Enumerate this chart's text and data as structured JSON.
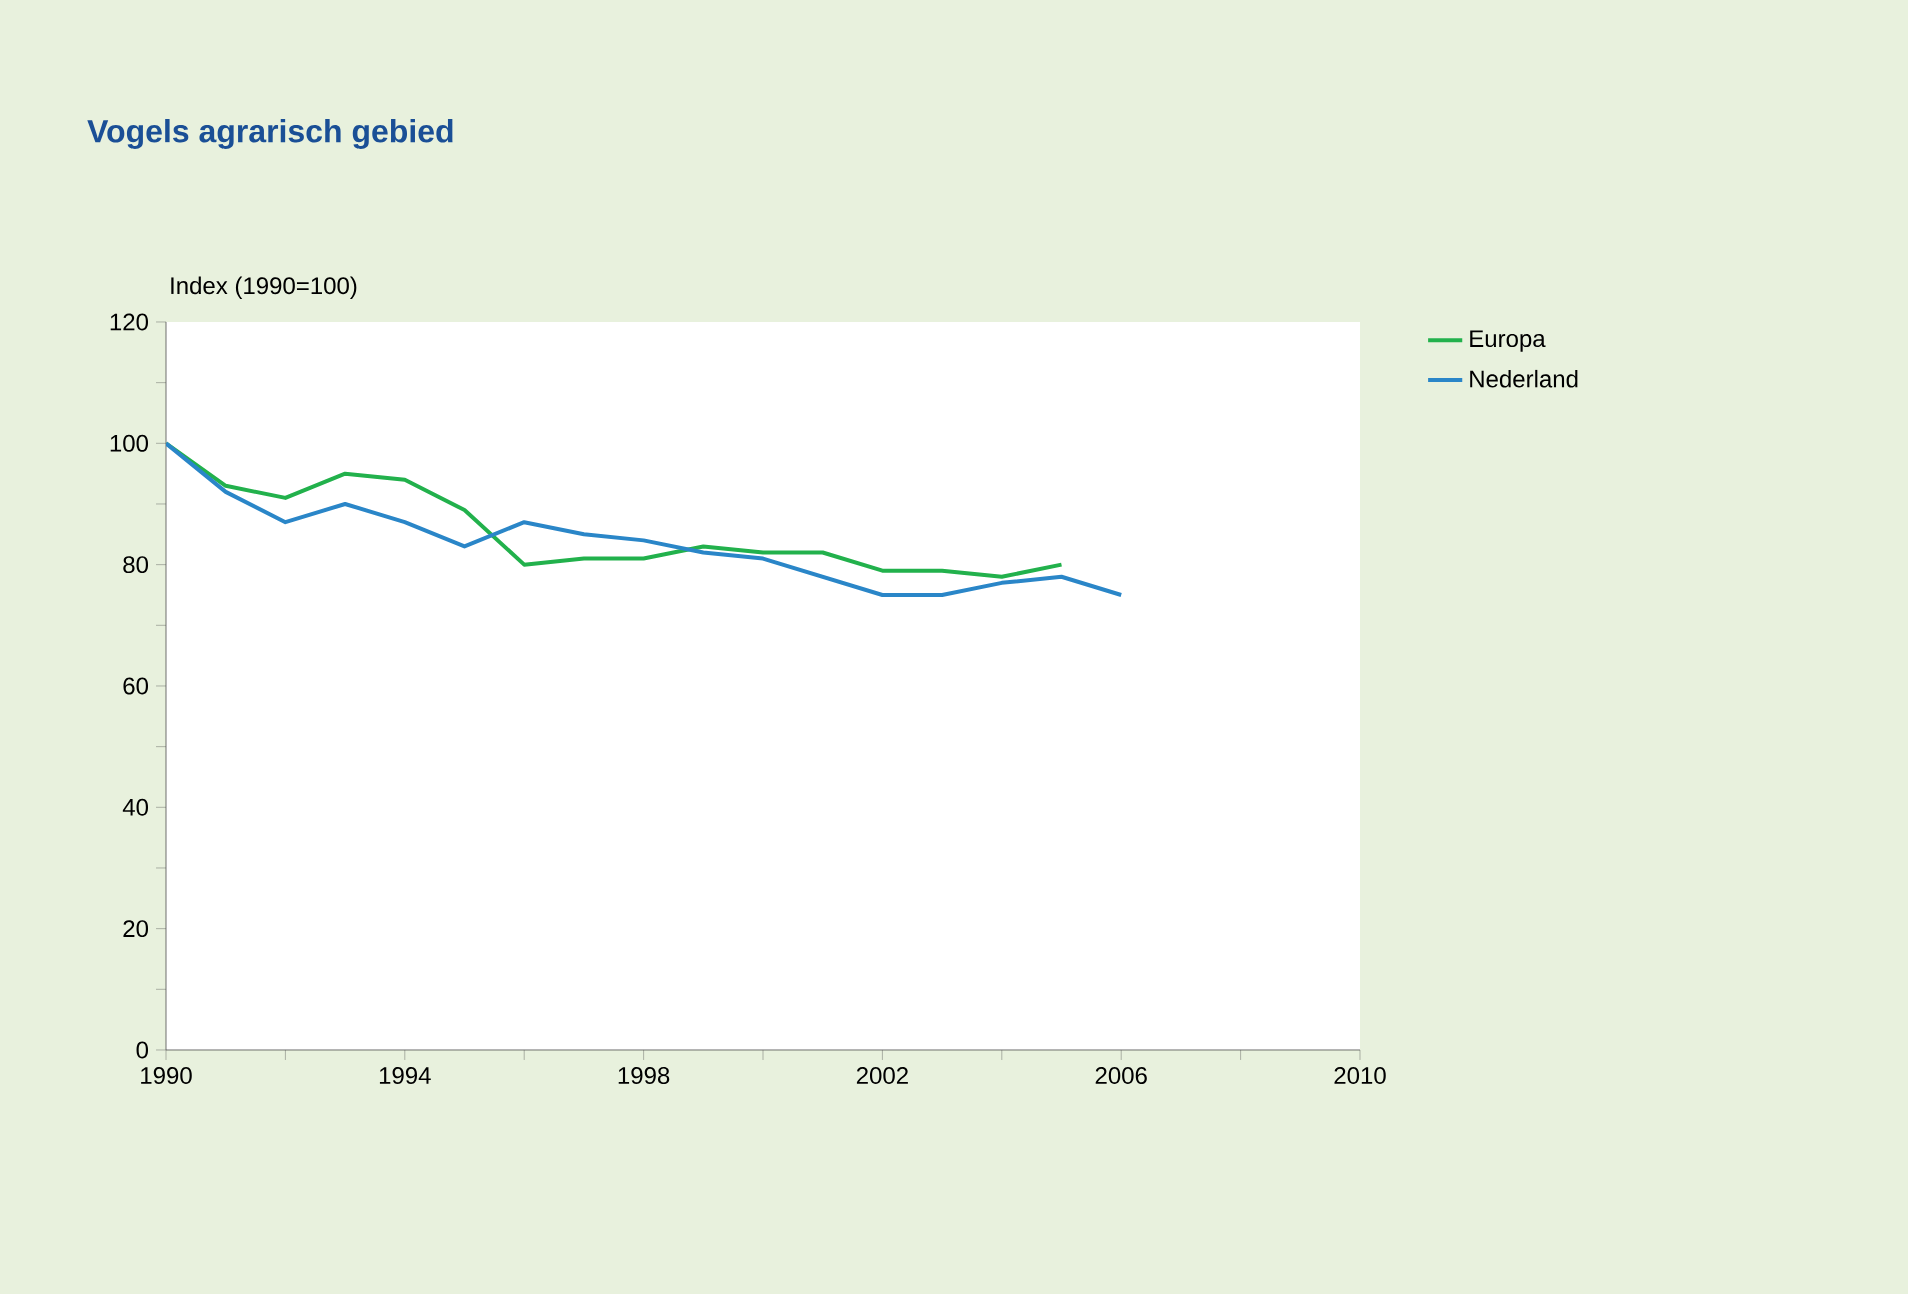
{
  "chart_data": {
    "type": "line",
    "title": "Vogels agrarisch gebied",
    "ylabel": "Index (1990=100)",
    "x": [
      1990,
      1991,
      1992,
      1993,
      1994,
      1995,
      1996,
      1997,
      1998,
      1999,
      2000,
      2001,
      2002,
      2003,
      2004,
      2005,
      2006
    ],
    "series": [
      {
        "name": "Europa",
        "color": "#22b14c",
        "values": [
          100,
          93,
          91,
          95,
          94,
          89,
          80,
          81,
          81,
          83,
          82,
          82,
          79,
          79,
          78,
          80,
          null
        ]
      },
      {
        "name": "Nederland",
        "color": "#2a86c8",
        "values": [
          100,
          92,
          87,
          90,
          87,
          83,
          87,
          85,
          84,
          82,
          81,
          78,
          75,
          75,
          77,
          78,
          75
        ]
      }
    ],
    "xlim": [
      1990,
      2010
    ],
    "xticks": [
      1990,
      {
        "value": 1992,
        "label": null
      },
      1994,
      {
        "value": 1996,
        "label": null
      },
      1998,
      {
        "value": 2000,
        "label": null
      },
      2002,
      {
        "value": 2004,
        "label": null
      },
      2006,
      {
        "value": 2008,
        "label": null
      },
      2010
    ],
    "ylim": [
      0,
      120
    ],
    "yticks": [
      0,
      {
        "value": 10,
        "label": null
      },
      20,
      {
        "value": 30,
        "label": null
      },
      40,
      {
        "value": 50,
        "label": null
      },
      60,
      {
        "value": 70,
        "label": null
      },
      80,
      {
        "value": 90,
        "label": null
      },
      100,
      {
        "value": 110,
        "label": null
      },
      120
    ],
    "grid": false,
    "legend": "right",
    "marker": "none",
    "line_style": "solid"
  }
}
